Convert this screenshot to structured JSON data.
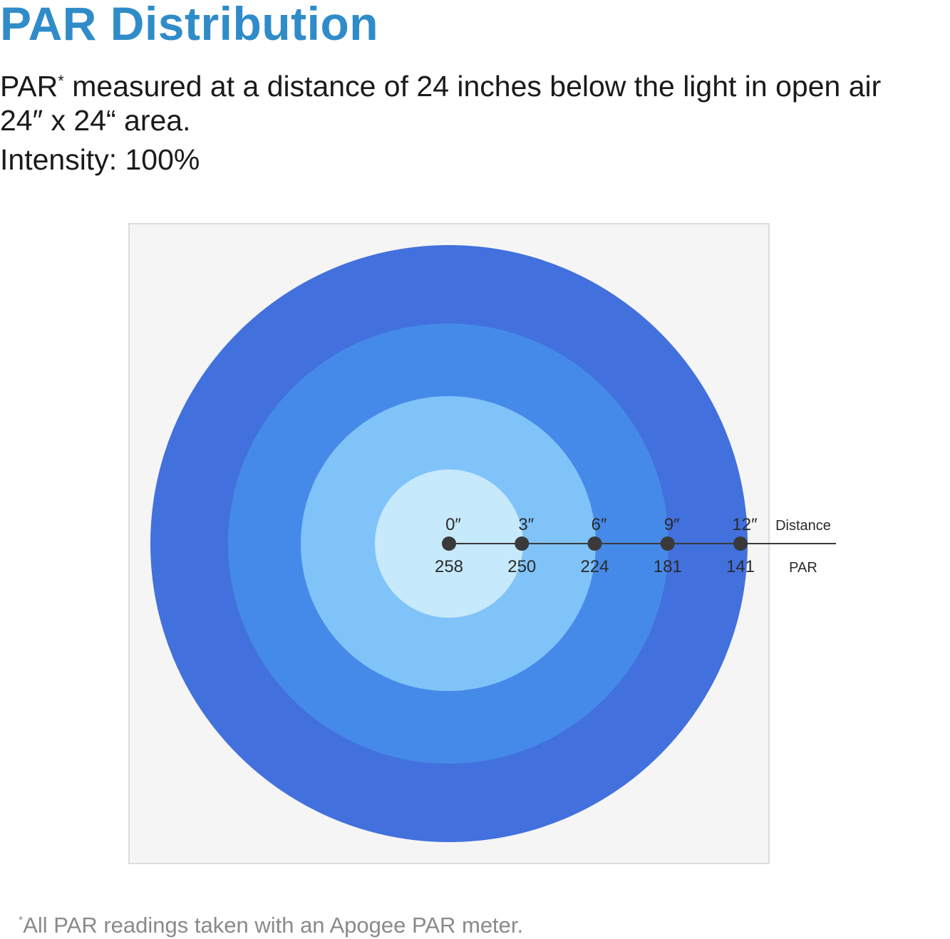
{
  "header": {
    "title": "PAR Distribution",
    "line1_prefix": "PAR",
    "line1_star": "*",
    "line1_rest": " measured at a distance of 24 inches below the light in open air",
    "line2": "24″ x 24“ area.",
    "line3": "Intensity: 100%"
  },
  "footnote": {
    "star": "*",
    "text": "All PAR readings taken with an Apogee PAR meter."
  },
  "colors": {
    "title": "#2f8cc9",
    "panel_bg": "#f5f5f5",
    "panel_border": "#dcdcdc",
    "ring_outer": "#4271dd",
    "ring_2": "#468ae9",
    "ring_3": "#80c3f8",
    "ring_inner": "#c7e9fc",
    "marker": "#3a3a3a",
    "axis_line": "#3a3a3a"
  },
  "chart_data": {
    "type": "scatter",
    "row_labels": {
      "top": "Distance",
      "bottom": "PAR"
    },
    "points": [
      {
        "distance": "0″",
        "par": "258"
      },
      {
        "distance": "3″",
        "par": "250"
      },
      {
        "distance": "6″",
        "par": "224"
      },
      {
        "distance": "9″",
        "par": "181"
      },
      {
        "distance": "12″",
        "par": "141"
      }
    ],
    "distance_values_in": [
      0,
      3,
      6,
      9,
      12
    ],
    "par_values": [
      258,
      250,
      224,
      181,
      141
    ]
  }
}
